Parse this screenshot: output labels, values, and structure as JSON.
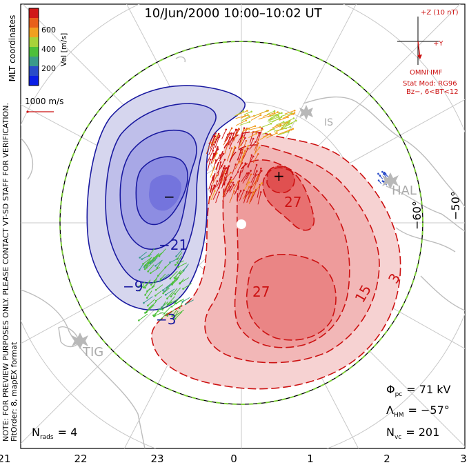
{
  "chart_data": {
    "type": "heatmap",
    "title": "10/Jun/2000 10:00–10:02 UT",
    "x_ticks": [
      "21",
      "22",
      "23",
      "0",
      "1",
      "2",
      "3"
    ],
    "mlat_labels": [
      "−60°",
      "−50°"
    ],
    "colorbar": {
      "label": "Vel [m/s]",
      "ticks": [
        "200",
        "400",
        "600"
      ],
      "colors": [
        "#0a1ee6",
        "#2a4cc8",
        "#3a9a8a",
        "#4dbf3a",
        "#a8d23a",
        "#f0a020",
        "#e8601a",
        "#d01818"
      ]
    },
    "velocity_scale": "1000 m/s",
    "side_label": "MLT coordinates",
    "imf": {
      "z_label": "+Z (10 nT)",
      "y_label": "+Y",
      "source": "OMNI IMF",
      "model": "Stat Mod: RG96",
      "condition": "Bz−, 6<BT<12"
    },
    "potential_contours": {
      "negative_labels": [
        "−21",
        "−9",
        "−3"
      ],
      "positive_labels": [
        "27",
        "27",
        "15",
        "3"
      ],
      "min_marker": "−",
      "max_marker": "+",
      "neg_color": "#1a1aa0",
      "pos_color": "#cc1111"
    },
    "stations": [
      "TIG",
      "HAL",
      "IS"
    ],
    "stats": {
      "phi_symbol": "Φ",
      "phi_sub": "pc",
      "phi_value": "= 71 kV",
      "lambda_symbol": "Λ",
      "lambda_sub": "HM",
      "lambda_value": "= −57°",
      "nvc_symbol": "N",
      "nvc_sub": "vc",
      "nvc_value": "= 201",
      "nrads_symbol": "N",
      "nrads_sub": "rads",
      "nrads_value": "= 4"
    },
    "notes": {
      "line1": "NOTE: FOR PREVIEW PURPOSES ONLY. PLEASE CONTACT VT-SD STAFF FOR VERIFICATION.",
      "line2": "FitOrder: 8, mapEX format"
    }
  }
}
